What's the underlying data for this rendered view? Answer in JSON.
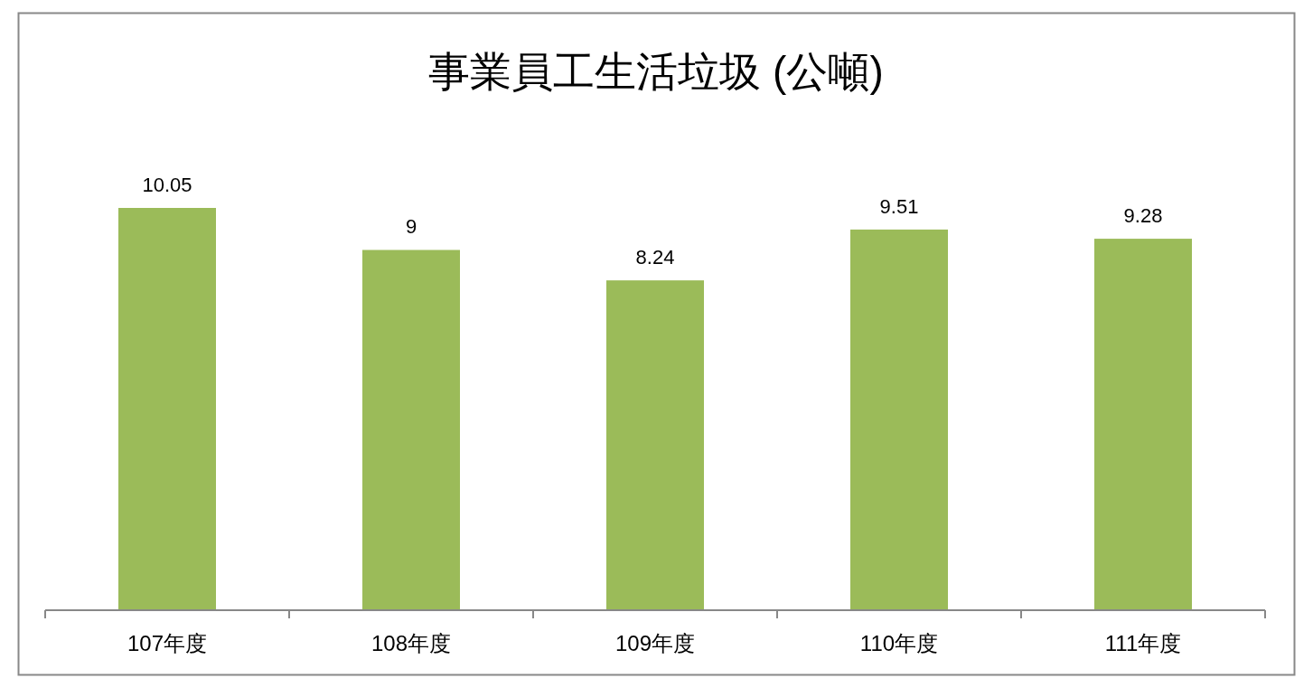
{
  "chart_data": {
    "type": "bar",
    "title": "事業員工生活垃圾 (公噸)",
    "categories": [
      "107年度",
      "108年度",
      "109年度",
      "110年度",
      "111年度"
    ],
    "values": [
      10.05,
      9,
      8.24,
      9.51,
      9.28
    ],
    "color": "#9bbb59",
    "data_labels": true
  }
}
